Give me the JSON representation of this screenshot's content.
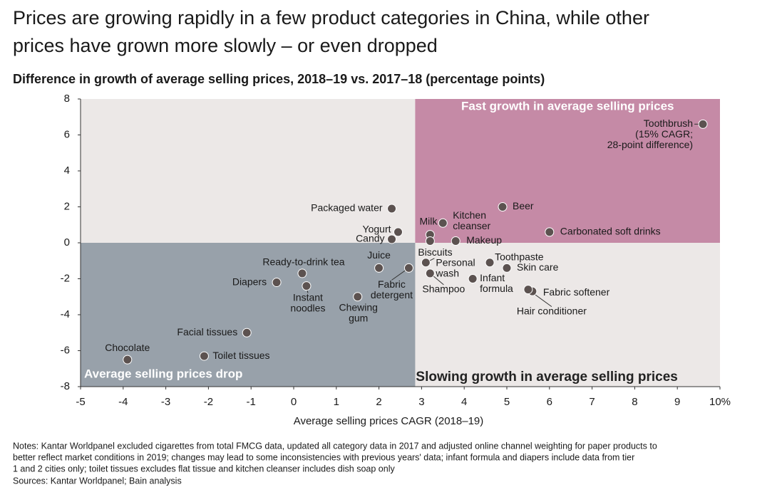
{
  "chart_data": {
    "type": "scatter",
    "title": [
      "Prices are growing rapidly in a few product categories in China, while other",
      "prices have grown more slowly – or even dropped"
    ],
    "subtitle": "Difference in growth of average selling prices, 2018–19 vs. 2017–18 (percentage points)",
    "x_label": "Average selling prices CAGR (2018–19)",
    "xlim": [
      -5,
      10
    ],
    "ylim": [
      -8,
      8
    ],
    "xticks": [
      -5,
      -4,
      -3,
      -2,
      -1,
      0,
      1,
      2,
      3,
      4,
      5,
      6,
      7,
      8,
      9,
      {
        "value": 10,
        "label": "10%"
      }
    ],
    "yticks": [
      -8,
      -6,
      -4,
      -2,
      0,
      2,
      4,
      6,
      8
    ],
    "quadrants": {
      "x_split": 2.85,
      "y_split": 0,
      "labels": {
        "top_right": "Fast growth in average selling prices",
        "bottom_left": "Average selling prices drop",
        "bottom_right": "Slowing growth in average selling prices"
      },
      "colors": {
        "top_right": "#c58aa6",
        "bottom_left": "#98a1aa",
        "other": "#ece8e7"
      }
    },
    "color": "#5c5250",
    "labels": [
      [
        "Toothbrush",
        "(15% CAGR;",
        "28-point difference)"
      ],
      [
        "Beer"
      ],
      [
        "Carbonated soft drinks"
      ],
      [
        "Packaged water"
      ],
      [
        "Yogurt"
      ],
      [
        "Candy"
      ],
      [
        "Milk"
      ],
      [
        "Kitchen",
        "cleanser"
      ],
      [
        "Biscuits"
      ],
      [
        "Makeup"
      ],
      [
        "Juice"
      ],
      [
        "Fabric",
        "detergent"
      ],
      [
        "Ready-to-drink tea"
      ],
      [
        "Instant",
        "noodles"
      ],
      [
        "Diapers"
      ],
      [
        "Chewing",
        "gum"
      ],
      [
        "Personal",
        "wash"
      ],
      [
        "Shampoo"
      ],
      [
        "Toothpaste"
      ],
      [
        "Skin care"
      ],
      [
        "Infant",
        "formula"
      ],
      [
        "Fabric softener"
      ],
      [
        "Hair conditioner"
      ],
      [
        "Facial tissues"
      ],
      [
        "Toilet tissues"
      ],
      [
        "Chocolate"
      ]
    ],
    "x": [
      9.6,
      4.9,
      6.0,
      2.3,
      2.45,
      2.3,
      3.2,
      3.5,
      3.2,
      3.8,
      2.0,
      2.7,
      0.2,
      0.3,
      -0.4,
      1.5,
      3.1,
      3.2,
      4.6,
      5.0,
      4.2,
      5.6,
      5.5,
      -1.1,
      -2.1,
      -3.9
    ],
    "values": [
      6.6,
      2.0,
      0.6,
      1.9,
      0.6,
      0.2,
      0.45,
      1.1,
      0.1,
      0.1,
      -1.4,
      -1.4,
      -1.7,
      -2.4,
      -2.2,
      -3.0,
      -1.1,
      -1.7,
      -1.1,
      -1.4,
      -2.0,
      -2.7,
      -2.6,
      -5.0,
      -6.3,
      -6.5
    ],
    "notes": [
      "Notes: Kantar Worldpanel excluded cigarettes from total FMCG data, updated all category data in 2017 and adjusted online channel weighting for paper products to",
      "better reflect market conditions in 2019; changes may lead to some inconsistencies with previous years' data; infant formula and diapers include data from tier",
      "1 and 2 cities only; toilet tissues excludes flat tissue and kitchen cleanser includes dish soap only"
    ],
    "sources": "Sources: Kantar Worldpanel; Bain analysis"
  }
}
